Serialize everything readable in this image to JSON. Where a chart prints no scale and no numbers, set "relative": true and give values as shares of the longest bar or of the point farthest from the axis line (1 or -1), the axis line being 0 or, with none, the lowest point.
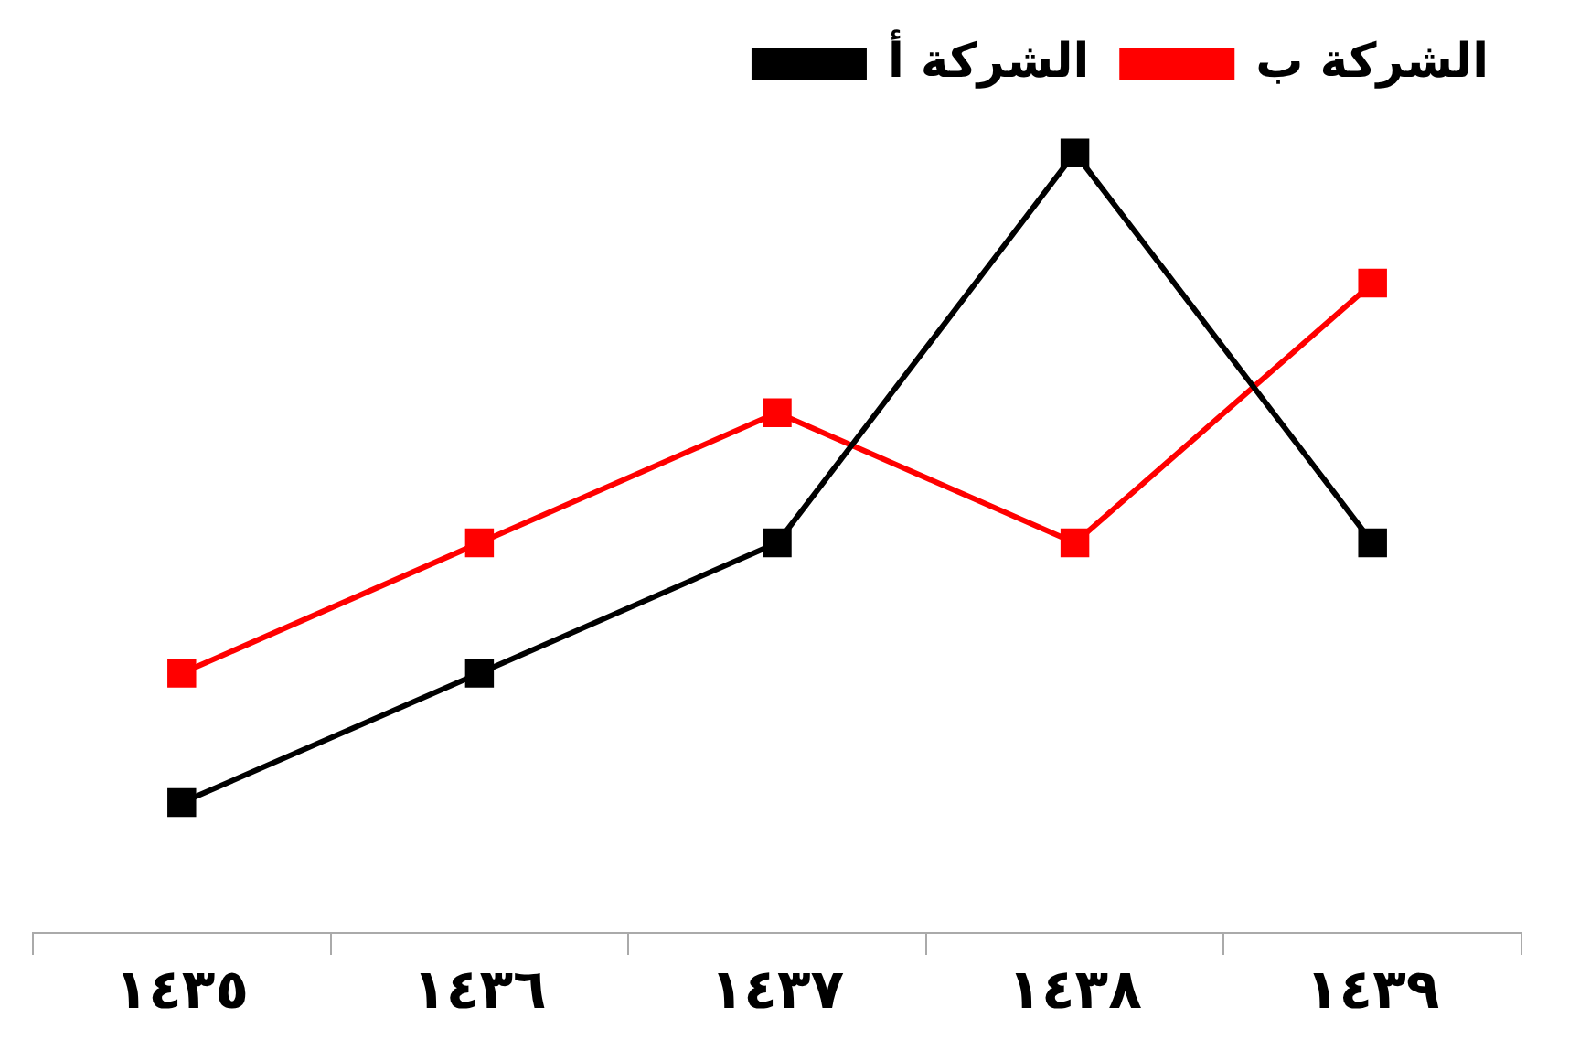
{
  "chart_data": {
    "type": "line",
    "relative": true,
    "categories": [
      "١٤٣٥",
      "١٤٣٦",
      "١٤٣٧",
      "١٤٣٨",
      "١٤٣٩"
    ],
    "series": [
      {
        "name": "الشركة أ",
        "color": "#000000",
        "values": [
          0.167,
          0.333,
          0.5,
          1,
          0.5
        ]
      },
      {
        "name": "الشركة ب",
        "color": "#ff0000",
        "values": [
          0.333,
          0.5,
          0.667,
          0.5,
          0.833
        ]
      }
    ],
    "marker": "square",
    "line_style": "solid",
    "legend": "top right"
  }
}
